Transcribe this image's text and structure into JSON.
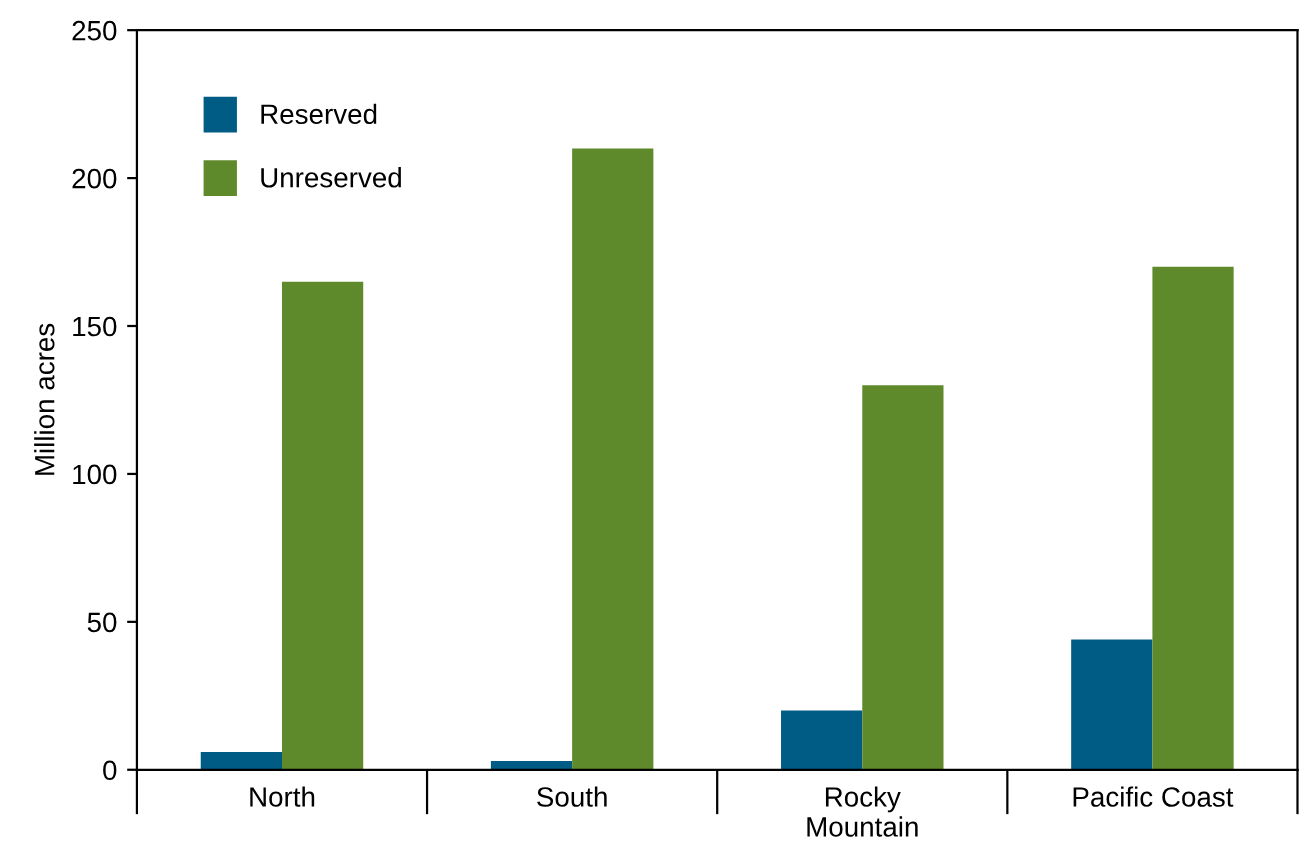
{
  "chart_data": {
    "type": "bar",
    "ylabel": "Million acres",
    "categories": [
      "North",
      "South",
      "Rocky\nMountain",
      "Pacific Coast"
    ],
    "series": [
      {
        "name": "Reserved",
        "color": "#005b85",
        "values": [
          6,
          3,
          20,
          44
        ]
      },
      {
        "name": "Unreserved",
        "color": "#5f8a2b",
        "values": [
          165,
          210,
          130,
          170
        ]
      }
    ],
    "ylim": [
      0,
      250
    ],
    "yticks": [
      0,
      50,
      100,
      150,
      200,
      250
    ],
    "grid": false,
    "legend": "top left"
  }
}
